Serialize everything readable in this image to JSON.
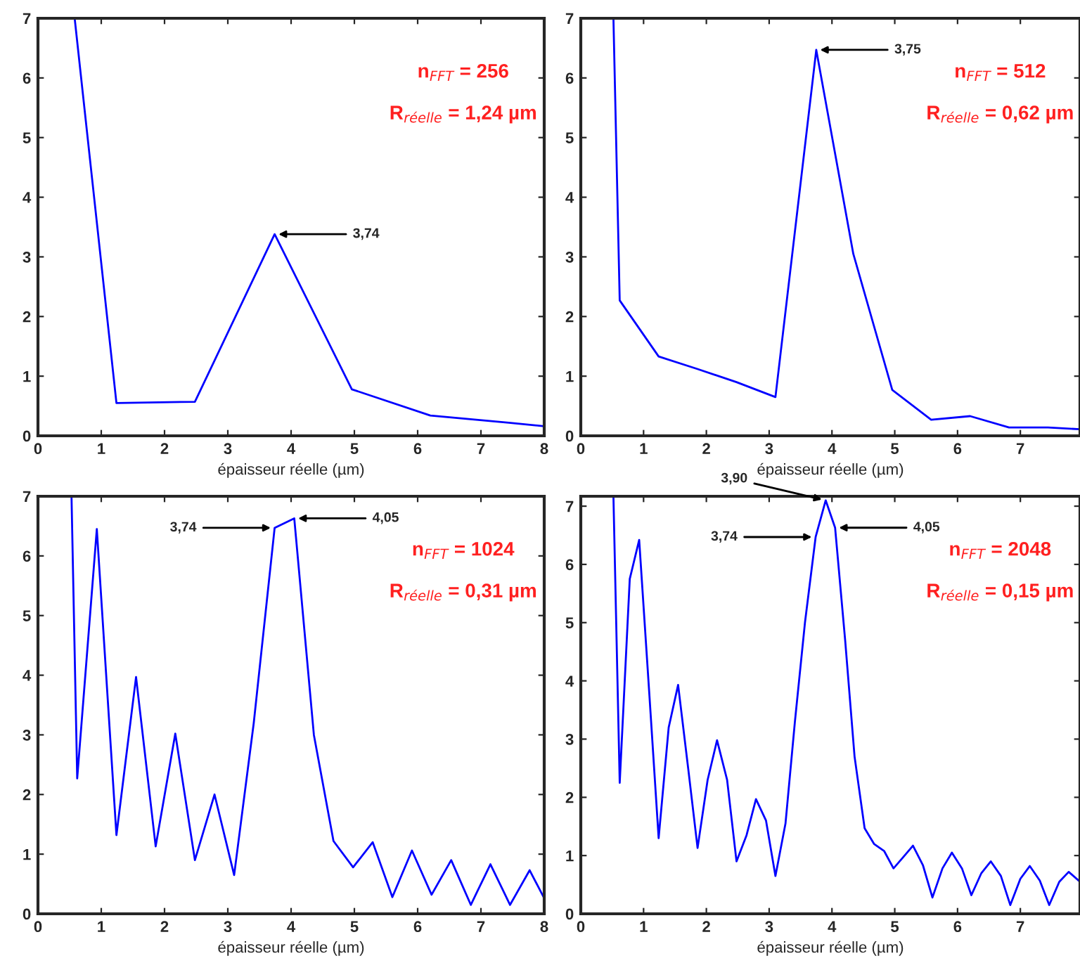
{
  "chart_data": [
    {
      "type": "line",
      "xlabel": "épaisseur réelle (µm)",
      "xlim": [
        0,
        8
      ],
      "ylim": [
        0,
        7
      ],
      "xticks": [
        0,
        1,
        2,
        3,
        4,
        5,
        6,
        7,
        8
      ],
      "yticks": [
        0,
        1,
        2,
        3,
        4,
        5,
        6,
        7
      ],
      "grid": false,
      "legend": false,
      "series": [
        {
          "color": "#0000ff",
          "x": [
            0.58,
            1.24,
            2.48,
            3.74,
            4.96,
            6.2,
            7.44,
            8
          ],
          "values": [
            7,
            0.55,
            0.57,
            3.38,
            0.78,
            0.34,
            0.22,
            0.16
          ]
        }
      ],
      "annotations": [
        "n$_{FFT}$ = 256",
        "R$_{réelle}$ = 1,24 µm",
        {
          "text": "3,74",
          "x": 3.74,
          "y": 3.38
        }
      ]
    },
    {
      "type": "line",
      "xlabel": "épaisseur réelle (µm)",
      "xlim": [
        0,
        7.95
      ],
      "ylim": [
        0,
        7
      ],
      "xticks": [
        0,
        1,
        2,
        3,
        4,
        5,
        6,
        7
      ],
      "yticks": [
        0,
        1,
        2,
        3,
        4,
        5,
        6,
        7
      ],
      "grid": false,
      "legend": false,
      "series": [
        {
          "color": "#0000ff",
          "x": [
            0.52,
            0.62,
            1.24,
            1.86,
            2.48,
            3.1,
            3.75,
            4.34,
            4.96,
            5.58,
            6.2,
            6.82,
            7.44,
            7.95
          ],
          "values": [
            7,
            2.27,
            1.33,
            1.12,
            0.9,
            0.65,
            6.47,
            3.05,
            0.77,
            0.27,
            0.33,
            0.14,
            0.14,
            0.11
          ]
        }
      ],
      "annotations": [
        "n$_{FFT}$ = 512",
        "R$_{réelle}$ = 0,62 µm",
        {
          "text": "3,75",
          "x": 3.75,
          "y": 6.47
        }
      ]
    },
    {
      "type": "line",
      "xlabel": "épaisseur réelle (µm)",
      "xlim": [
        0,
        8
      ],
      "ylim": [
        0,
        7
      ],
      "xticks": [
        0,
        1,
        2,
        3,
        4,
        5,
        6,
        7,
        8
      ],
      "yticks": [
        0,
        1,
        2,
        3,
        4,
        5,
        6,
        7
      ],
      "grid": false,
      "legend": false,
      "series": [
        {
          "color": "#0000ff",
          "x": [
            0.53,
            0.62,
            0.93,
            1.24,
            1.55,
            1.86,
            2.17,
            2.48,
            2.79,
            3.1,
            3.41,
            3.74,
            4.05,
            4.36,
            4.67,
            4.98,
            5.29,
            5.6,
            5.91,
            6.22,
            6.53,
            6.84,
            7.15,
            7.46,
            7.77,
            8
          ],
          "values": [
            7,
            2.27,
            6.45,
            1.32,
            3.97,
            1.13,
            3.02,
            0.9,
            2.0,
            0.65,
            3.2,
            6.47,
            6.63,
            3.0,
            1.22,
            0.78,
            1.2,
            0.28,
            1.06,
            0.32,
            0.9,
            0.15,
            0.83,
            0.15,
            0.73,
            0.26
          ]
        }
      ],
      "annotations": [
        "n$_{FFT}$ = 1024",
        "R$_{réelle}$ = 0,31 µm",
        {
          "text": "3,74",
          "x": 3.74,
          "y": 6.47
        },
        {
          "text": "4,05",
          "x": 4.05,
          "y": 6.63
        }
      ]
    },
    {
      "type": "line",
      "xlabel": "épaisseur réelle (µm)",
      "xlim": [
        0,
        7.95
      ],
      "ylim": [
        0,
        7.17
      ],
      "xticks": [
        0,
        1,
        2,
        3,
        4,
        5,
        6,
        7
      ],
      "yticks": [
        0,
        1,
        2,
        3,
        4,
        5,
        6,
        7
      ],
      "grid": false,
      "legend": false,
      "series": [
        {
          "color": "#0000ff",
          "x": [
            0.52,
            0.62,
            0.78,
            0.93,
            1.09,
            1.24,
            1.4,
            1.55,
            1.71,
            1.86,
            2.02,
            2.17,
            2.33,
            2.48,
            2.64,
            2.79,
            2.95,
            3.1,
            3.26,
            3.41,
            3.57,
            3.74,
            3.9,
            4.05,
            4.21,
            4.36,
            4.52,
            4.67,
            4.83,
            4.98,
            5.14,
            5.29,
            5.45,
            5.6,
            5.76,
            5.91,
            6.07,
            6.22,
            6.38,
            6.53,
            6.69,
            6.84,
            7.0,
            7.15,
            7.31,
            7.46,
            7.62,
            7.77,
            7.95
          ],
          "values": [
            7.17,
            2.25,
            5.75,
            6.42,
            3.8,
            1.3,
            3.2,
            3.93,
            2.5,
            1.13,
            2.3,
            2.98,
            2.3,
            0.9,
            1.35,
            1.97,
            1.6,
            0.65,
            1.55,
            3.3,
            5.0,
            6.47,
            7.1,
            6.63,
            4.7,
            2.7,
            1.47,
            1.2,
            1.08,
            0.78,
            0.98,
            1.17,
            0.83,
            0.28,
            0.78,
            1.05,
            0.78,
            0.32,
            0.7,
            0.9,
            0.65,
            0.15,
            0.6,
            0.82,
            0.57,
            0.15,
            0.55,
            0.72,
            0.55
          ]
        }
      ],
      "annotations": [
        "n$_{FFT}$ = 2048",
        "R$_{réelle}$ = 0,15 µm",
        {
          "text": "3,74",
          "x": 3.74,
          "y": 6.47
        },
        {
          "text": "3,90",
          "x": 3.9,
          "y": 7.1
        },
        {
          "text": "4,05",
          "x": 4.05,
          "y": 6.63
        }
      ]
    }
  ]
}
